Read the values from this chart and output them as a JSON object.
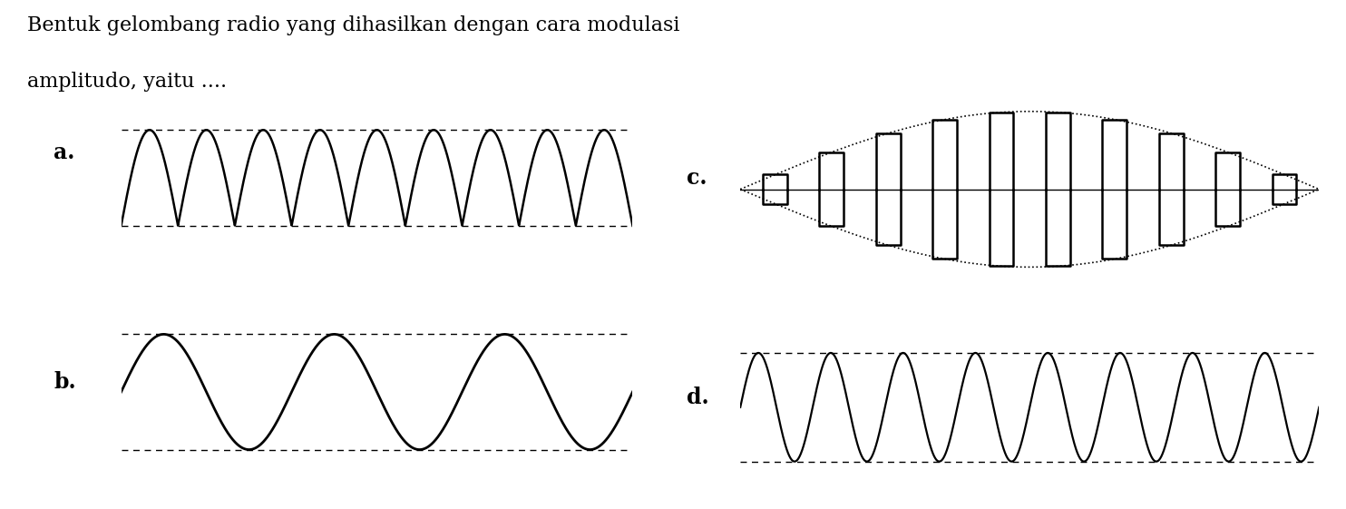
{
  "title_line1": "Bentuk gelombang radio yang dihasilkan dengan cara modulasi",
  "title_line2": "amplitudo, yaitu ....",
  "bg_color": "#ffffff",
  "text_color": "#000000",
  "wave_color": "#000000",
  "dash_color": "#000000",
  "labels": [
    "a.",
    "b.",
    "c.",
    "d."
  ]
}
